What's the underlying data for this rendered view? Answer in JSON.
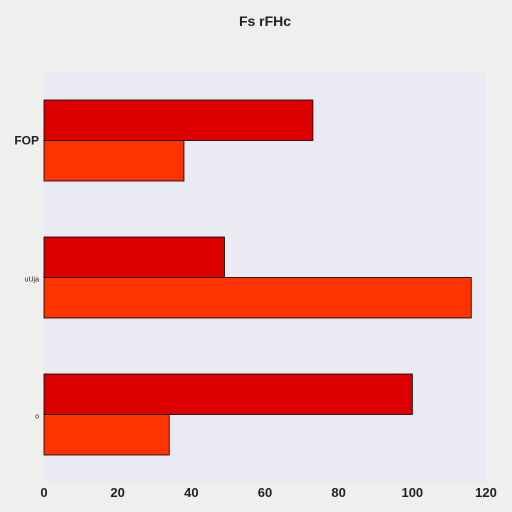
{
  "chart_data": {
    "type": "bar",
    "orientation": "horizontal",
    "title": "Fs rFHc",
    "xlabel": "",
    "ylabel": "",
    "categories": [
      "FOP",
      "uUja",
      "o"
    ],
    "series": [
      {
        "values": [
          73,
          49,
          100
        ],
        "color": "#dd0000"
      },
      {
        "values": [
          38,
          116,
          34
        ],
        "color": "#ff3300"
      }
    ],
    "xlim": [
      0,
      120
    ],
    "xticks": [
      "0",
      "20",
      "40",
      "60",
      "80",
      "100",
      "120"
    ],
    "grid": false,
    "legend": "none",
    "plot_background": "#eaeaf2"
  }
}
